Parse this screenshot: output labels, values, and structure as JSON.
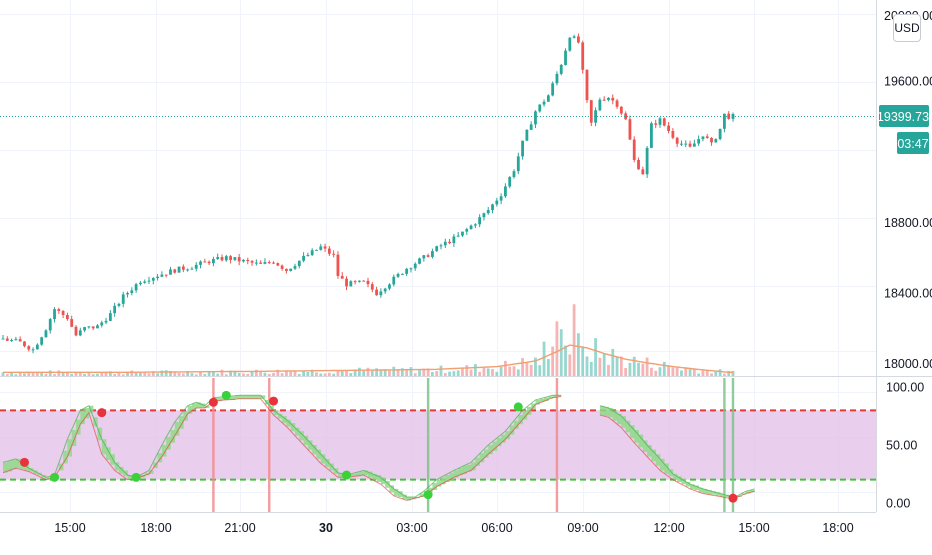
{
  "ui": {
    "currency_button": "USD",
    "last_price": "19399.73",
    "countdown": "03:47",
    "price_axis_top": "20000.00"
  },
  "chart_data": [
    {
      "type": "candlestick",
      "title": "",
      "price_axis": {
        "ticks": [
          {
            "value": 19600,
            "label": "19600.00"
          },
          {
            "value": 18800,
            "label": "18800.00"
          },
          {
            "value": 18400,
            "label": "18400.00"
          },
          {
            "value": 18000,
            "label": "18000.00"
          }
        ],
        "ylim": [
          17930,
          20060
        ]
      },
      "time_axis": {
        "ticks": [
          "15:00",
          "18:00",
          "21:00",
          "30",
          "03:00",
          "06:00",
          "09:00",
          "12:00",
          "15:00",
          "18:00"
        ],
        "bold_tick": "30"
      },
      "close_anchors": [
        [
          0,
          18140
        ],
        [
          4,
          18120
        ],
        [
          7,
          18080
        ],
        [
          10,
          18200
        ],
        [
          12,
          18310
        ],
        [
          15,
          18260
        ],
        [
          17,
          18160
        ],
        [
          19,
          18200
        ],
        [
          22,
          18210
        ],
        [
          25,
          18280
        ],
        [
          28,
          18380
        ],
        [
          32,
          18470
        ],
        [
          36,
          18500
        ],
        [
          40,
          18530
        ],
        [
          44,
          18550
        ],
        [
          48,
          18580
        ],
        [
          52,
          18600
        ],
        [
          56,
          18580
        ],
        [
          60,
          18560
        ],
        [
          63,
          18580
        ],
        [
          66,
          18530
        ],
        [
          70,
          18600
        ],
        [
          74,
          18660
        ],
        [
          77,
          18610
        ],
        [
          78,
          18500
        ],
        [
          80,
          18450
        ],
        [
          84,
          18460
        ],
        [
          87,
          18400
        ],
        [
          90,
          18460
        ],
        [
          94,
          18540
        ],
        [
          98,
          18600
        ],
        [
          102,
          18670
        ],
        [
          106,
          18720
        ],
        [
          110,
          18800
        ],
        [
          113,
          18870
        ],
        [
          116,
          18960
        ],
        [
          119,
          19100
        ],
        [
          121,
          19250
        ],
        [
          124,
          19430
        ],
        [
          127,
          19520
        ],
        [
          130,
          19700
        ],
        [
          132,
          19860
        ],
        [
          134,
          19820
        ],
        [
          136,
          19480
        ],
        [
          137,
          19360
        ],
        [
          139,
          19500
        ],
        [
          141,
          19510
        ],
        [
          143,
          19470
        ],
        [
          145,
          19380
        ],
        [
          147,
          19150
        ],
        [
          149,
          19080
        ],
        [
          151,
          19350
        ],
        [
          153,
          19380
        ],
        [
          155,
          19320
        ],
        [
          157,
          19260
        ],
        [
          160,
          19220
        ],
        [
          163,
          19300
        ],
        [
          165,
          19240
        ],
        [
          167,
          19330
        ],
        [
          168,
          19410
        ],
        [
          169,
          19400
        ]
      ],
      "volume_ma_anchors": [
        [
          0,
          4
        ],
        [
          30,
          4
        ],
        [
          60,
          5
        ],
        [
          80,
          6
        ],
        [
          100,
          7
        ],
        [
          115,
          10
        ],
        [
          124,
          16
        ],
        [
          129,
          26
        ],
        [
          132,
          33
        ],
        [
          136,
          30
        ],
        [
          140,
          24
        ],
        [
          145,
          18
        ],
        [
          150,
          14
        ],
        [
          156,
          10
        ],
        [
          162,
          7
        ],
        [
          169,
          4
        ]
      ],
      "volume_spikes": [
        {
          "bar": 129,
          "value": 70
        },
        {
          "bar": 130,
          "value": 60
        },
        {
          "bar": 133,
          "value": 92
        },
        {
          "bar": 126,
          "value": 44
        },
        {
          "bar": 135,
          "value": 38
        }
      ],
      "colors": {
        "up": "#26a69a",
        "down": "#ef5350",
        "volume_ma": "#f0a070",
        "last_price_line": "#26a69a"
      }
    },
    {
      "type": "oscillator",
      "y_axis": {
        "ticks": [
          {
            "value": 100,
            "label": "100.00"
          },
          {
            "value": 50,
            "label": "50.00"
          },
          {
            "value": 0,
            "label": "0.00"
          }
        ],
        "ylim": [
          -8,
          108
        ]
      },
      "overbought": 80,
      "oversold": 20,
      "series": [
        {
          "band": "fast",
          "anchors": [
            [
              0,
              35
            ],
            [
              3,
              38
            ],
            [
              6,
              30
            ],
            [
              10,
              22
            ],
            [
              12,
              24
            ],
            [
              15,
              55
            ],
            [
              18,
              80
            ],
            [
              20,
              84
            ],
            [
              23,
              55
            ],
            [
              26,
              35
            ],
            [
              29,
              24
            ],
            [
              31,
              22
            ],
            [
              34,
              28
            ],
            [
              37,
              50
            ],
            [
              40,
              70
            ],
            [
              43,
              84
            ],
            [
              45,
              87
            ],
            [
              47,
              84
            ],
            [
              49,
              91
            ],
            [
              55,
              93
            ],
            [
              60,
              93
            ],
            [
              63,
              80
            ],
            [
              66,
              72
            ],
            [
              70,
              58
            ],
            [
              74,
              42
            ],
            [
              78,
              26
            ],
            [
              80,
              24
            ],
            [
              84,
              28
            ],
            [
              88,
              22
            ],
            [
              91,
              12
            ],
            [
              94,
              5
            ],
            [
              96,
              5
            ],
            [
              98,
              10
            ],
            [
              101,
              20
            ],
            [
              105,
              28
            ],
            [
              109,
              35
            ],
            [
              113,
              50
            ],
            [
              117,
              62
            ],
            [
              121,
              80
            ],
            [
              124,
              89
            ],
            [
              128,
              93
            ],
            [
              130,
              93
            ]
          ]
        },
        {
          "band": "slow",
          "anchors": [
            [
              0,
              26
            ],
            [
              3,
              30
            ],
            [
              6,
              27
            ],
            [
              10,
              20
            ],
            [
              12,
              22
            ],
            [
              15,
              40
            ],
            [
              18,
              68
            ],
            [
              20,
              78
            ],
            [
              23,
              42
            ],
            [
              26,
              28
            ],
            [
              29,
              20
            ],
            [
              31,
              21
            ],
            [
              34,
              25
            ],
            [
              37,
              40
            ],
            [
              40,
              58
            ],
            [
              43,
              77
            ],
            [
              45,
              82
            ],
            [
              47,
              82
            ],
            [
              49,
              88
            ],
            [
              55,
              90
            ],
            [
              60,
              90
            ],
            [
              63,
              76
            ],
            [
              66,
              66
            ],
            [
              70,
              50
            ],
            [
              74,
              34
            ],
            [
              78,
              22
            ],
            [
              80,
              22
            ],
            [
              84,
              24
            ],
            [
              88,
              16
            ],
            [
              91,
              6
            ],
            [
              94,
              2
            ],
            [
              96,
              4
            ],
            [
              98,
              6
            ],
            [
              101,
              14
            ],
            [
              105,
              22
            ],
            [
              109,
              28
            ],
            [
              113,
              42
            ],
            [
              117,
              55
            ],
            [
              121,
              72
            ],
            [
              124,
              85
            ],
            [
              128,
              91
            ],
            [
              130,
              92
            ]
          ]
        },
        {
          "band": "fast-2",
          "anchors": [
            [
              139,
              84
            ],
            [
              141,
              82
            ],
            [
              144,
              75
            ],
            [
              147,
              63
            ],
            [
              150,
              50
            ],
            [
              153,
              38
            ],
            [
              156,
              25
            ],
            [
              160,
              16
            ],
            [
              163,
              12
            ],
            [
              166,
              9
            ],
            [
              169,
              6
            ],
            [
              171,
              6
            ],
            [
              173,
              10
            ],
            [
              175,
              12
            ]
          ]
        },
        {
          "band": "slow-2",
          "anchors": [
            [
              139,
              76
            ],
            [
              141,
              74
            ],
            [
              144,
              65
            ],
            [
              147,
              52
            ],
            [
              150,
              40
            ],
            [
              153,
              28
            ],
            [
              156,
              20
            ],
            [
              160,
              12
            ],
            [
              163,
              8
            ],
            [
              166,
              6
            ],
            [
              169,
              4
            ],
            [
              171,
              5
            ],
            [
              173,
              8
            ],
            [
              175,
              10
            ]
          ]
        }
      ],
      "signals": [
        {
          "bar": 5,
          "value": 35,
          "kind": "sell"
        },
        {
          "bar": 12,
          "value": 22,
          "kind": "buy"
        },
        {
          "bar": 23,
          "value": 78,
          "kind": "sell"
        },
        {
          "bar": 31,
          "value": 22,
          "kind": "buy"
        },
        {
          "bar": 49,
          "value": 87,
          "kind": "sell"
        },
        {
          "bar": 52,
          "value": 93,
          "kind": "buy"
        },
        {
          "bar": 63,
          "value": 88,
          "kind": "sell"
        },
        {
          "bar": 80,
          "value": 24,
          "kind": "buy"
        },
        {
          "bar": 99,
          "value": 7,
          "kind": "buy"
        },
        {
          "bar": 120,
          "value": 83,
          "kind": "buy"
        },
        {
          "bar": 170,
          "value": 4,
          "kind": "sell"
        }
      ],
      "vertical_markers": [
        {
          "bar": 49,
          "color": "red"
        },
        {
          "bar": 62,
          "color": "red"
        },
        {
          "bar": 99,
          "color": "green"
        },
        {
          "bar": 129,
          "color": "red"
        },
        {
          "bar": 168,
          "color": "green"
        },
        {
          "bar": 170,
          "color": "green"
        }
      ],
      "colors": {
        "bull_fill": "#8fd98a",
        "bear_fill": "#e98a8f",
        "band_fill": "#e1bee7",
        "ob_line": "#e53935",
        "os_line": "#43c03a"
      }
    }
  ]
}
